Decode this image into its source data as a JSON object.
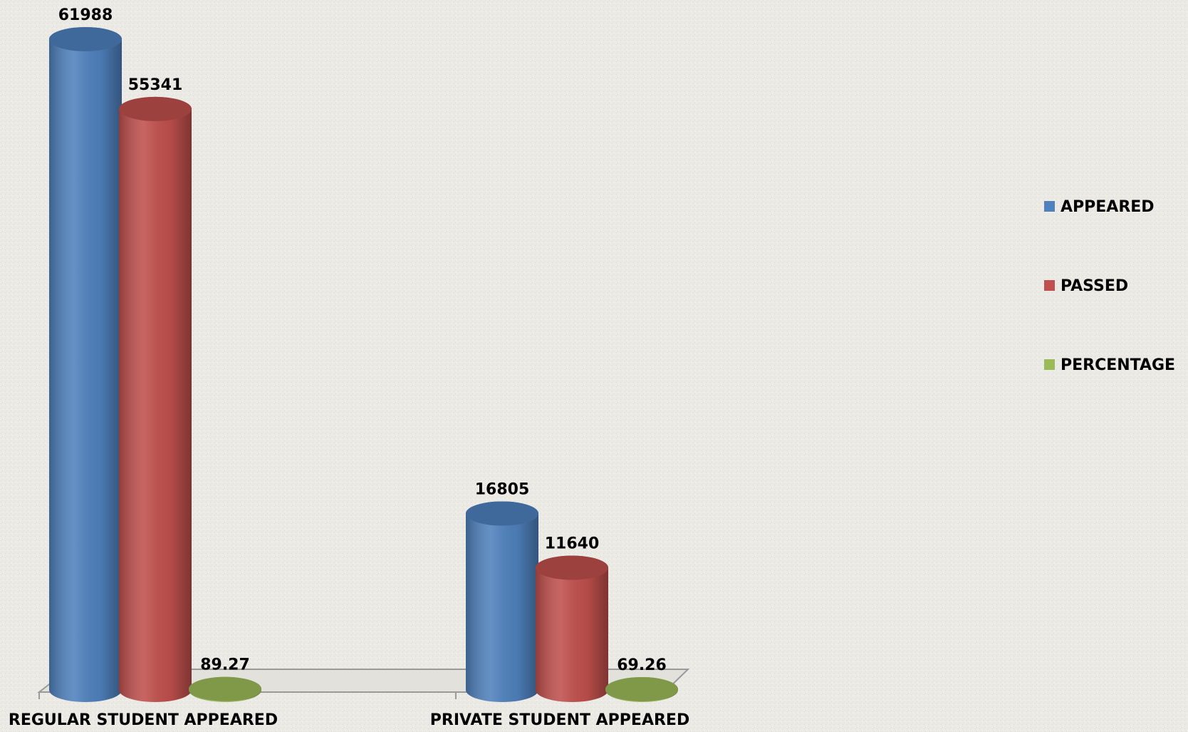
{
  "chart_data": {
    "type": "bar",
    "categories": [
      "REGULAR STUDENT APPEARED",
      "PRIVATE STUDENT APPEARED"
    ],
    "series": [
      {
        "name": "APPEARED",
        "color": "#4f81bd",
        "values": [
          61988,
          16805
        ]
      },
      {
        "name": "PASSED",
        "color": "#c0504d",
        "values": [
          55341,
          11640
        ]
      },
      {
        "name": "PERCENTAGE",
        "color": "#9bbb59",
        "values": [
          89.27,
          69.26
        ]
      }
    ],
    "legend": "right"
  }
}
